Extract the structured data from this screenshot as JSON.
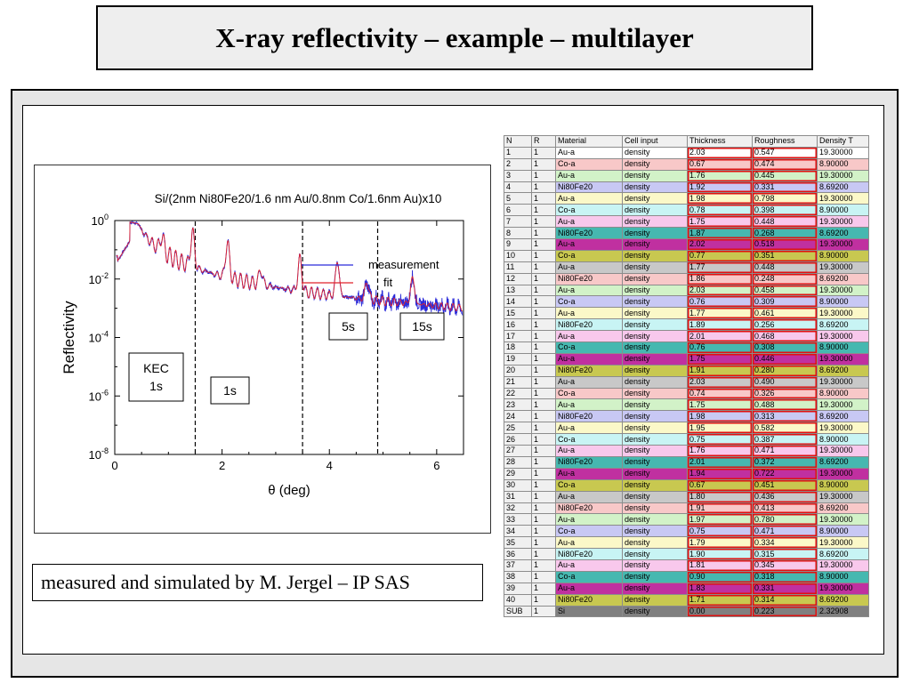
{
  "slide": {
    "title": "X-ray reflectivity – example – multilayer",
    "credit": "measured and simulated by M. Jergel – IP SAS"
  },
  "colors": {
    "measurement": "#2b2bd9",
    "fit": "#e0202a",
    "marker_lines": "#000000",
    "highlight": "#e01010"
  },
  "chart_data": {
    "type": "line",
    "title": "Si/(2nm Ni80Fe20/1.6 nm Au/0.8nm Co/1.6nm Au)x10",
    "xlabel": "θ (deg)",
    "ylabel": "Reflectivity",
    "xlim": [
      0,
      6.5
    ],
    "ylim_log10": [
      -8,
      0
    ],
    "yscale": "log",
    "x_ticks": [
      0,
      2,
      4,
      6
    ],
    "y_ticks": [
      {
        "base": "10",
        "exp": "0"
      },
      {
        "base": "10",
        "exp": "-2"
      },
      {
        "base": "10",
        "exp": "-4"
      },
      {
        "base": "10",
        "exp": "-6"
      },
      {
        "base": "10",
        "exp": "-8"
      }
    ],
    "series": [
      {
        "name": "measurement"
      },
      {
        "name": "fit"
      }
    ],
    "legend_position": "top-right",
    "vlines_x": [
      1.5,
      3.5,
      4.9
    ],
    "annotations": [
      {
        "text": "KEC\n1s",
        "x": 0.55,
        "log10_y": -5.0
      },
      {
        "text": "1s",
        "x": 2.15,
        "log10_y": -5.8
      },
      {
        "text": "5s",
        "x": 4.3,
        "log10_y": -3.6
      },
      {
        "text": "15s",
        "x": 5.7,
        "log10_y": -3.6
      }
    ]
  },
  "table": {
    "headers": [
      "N",
      "R",
      "Material",
      "Cell input",
      "Thickness",
      "Roughness",
      "Density T"
    ],
    "rows": [
      [
        "1",
        "1",
        "Au-a",
        "density",
        "2.03",
        "0.547",
        "19.30000"
      ],
      [
        "2",
        "1",
        "Co-a",
        "density",
        "0.67",
        "0.474",
        "8.90000"
      ],
      [
        "3",
        "1",
        "Au-a",
        "density",
        "1.76",
        "0.445",
        "19.30000"
      ],
      [
        "4",
        "1",
        "Ni80Fe20",
        "density",
        "1.92",
        "0.331",
        "8.69200"
      ],
      [
        "5",
        "1",
        "Au-a",
        "density",
        "1.98",
        "0.798",
        "19.30000"
      ],
      [
        "6",
        "1",
        "Co-a",
        "density",
        "0.78",
        "0.398",
        "8.90000"
      ],
      [
        "7",
        "1",
        "Au-a",
        "density",
        "1.75",
        "0.448",
        "19.30000"
      ],
      [
        "8",
        "1",
        "Ni80Fe20",
        "density",
        "1.87",
        "0.268",
        "8.69200"
      ],
      [
        "9",
        "1",
        "Au-a",
        "density",
        "2.02",
        "0.518",
        "19.30000"
      ],
      [
        "10",
        "1",
        "Co-a",
        "density",
        "0.77",
        "0.351",
        "8.90000"
      ],
      [
        "11",
        "1",
        "Au-a",
        "density",
        "1.77",
        "0.448",
        "19.30000"
      ],
      [
        "12",
        "1",
        "Ni80Fe20",
        "density",
        "1.86",
        "0.248",
        "8.69200"
      ],
      [
        "13",
        "1",
        "Au-a",
        "density",
        "2.03",
        "0.458",
        "19.30000"
      ],
      [
        "14",
        "1",
        "Co-a",
        "density",
        "0.76",
        "0.309",
        "8.90000"
      ],
      [
        "15",
        "1",
        "Au-a",
        "density",
        "1.77",
        "0.461",
        "19.30000"
      ],
      [
        "16",
        "1",
        "Ni80Fe20",
        "density",
        "1.89",
        "0.256",
        "8.69200"
      ],
      [
        "17",
        "1",
        "Au-a",
        "density",
        "2.01",
        "0.468",
        "19.30000"
      ],
      [
        "18",
        "1",
        "Co-a",
        "density",
        "0.76",
        "0.308",
        "8.90000"
      ],
      [
        "19",
        "1",
        "Au-a",
        "density",
        "1.75",
        "0.446",
        "19.30000"
      ],
      [
        "20",
        "1",
        "Ni80Fe20",
        "density",
        "1.91",
        "0.280",
        "8.69200"
      ],
      [
        "21",
        "1",
        "Au-a",
        "density",
        "2.03",
        "0.490",
        "19.30000"
      ],
      [
        "22",
        "1",
        "Co-a",
        "density",
        "0.74",
        "0.326",
        "8.90000"
      ],
      [
        "23",
        "1",
        "Au-a",
        "density",
        "1.75",
        "0.488",
        "19.30000"
      ],
      [
        "24",
        "1",
        "Ni80Fe20",
        "density",
        "1.98",
        "0.313",
        "8.69200"
      ],
      [
        "25",
        "1",
        "Au-a",
        "density",
        "1.95",
        "0.582",
        "19.30000"
      ],
      [
        "26",
        "1",
        "Co-a",
        "density",
        "0.75",
        "0.387",
        "8.90000"
      ],
      [
        "27",
        "1",
        "Au-a",
        "density",
        "1.76",
        "0.471",
        "19.30000"
      ],
      [
        "28",
        "1",
        "Ni80Fe20",
        "density",
        "2.01",
        "0.372",
        "8.69200"
      ],
      [
        "29",
        "1",
        "Au-a",
        "density",
        "1.94",
        "0.722",
        "19.30000"
      ],
      [
        "30",
        "1",
        "Co-a",
        "density",
        "0.67",
        "0.451",
        "8.90000"
      ],
      [
        "31",
        "1",
        "Au-a",
        "density",
        "1.80",
        "0.436",
        "19.30000"
      ],
      [
        "32",
        "1",
        "Ni80Fe20",
        "density",
        "1.91",
        "0.413",
        "8.69200"
      ],
      [
        "33",
        "1",
        "Au-a",
        "density",
        "1.97",
        "0.780",
        "19.30000"
      ],
      [
        "34",
        "1",
        "Co-a",
        "density",
        "0.75",
        "0.471",
        "8.90000"
      ],
      [
        "35",
        "1",
        "Au-a",
        "density",
        "1.79",
        "0.334",
        "19.30000"
      ],
      [
        "36",
        "1",
        "Ni80Fe20",
        "density",
        "1.90",
        "0.315",
        "8.69200"
      ],
      [
        "37",
        "1",
        "Au-a",
        "density",
        "1.81",
        "0.345",
        "19.30000"
      ],
      [
        "38",
        "1",
        "Co-a",
        "density",
        "0.90",
        "0.318",
        "8.90000"
      ],
      [
        "39",
        "1",
        "Au-a",
        "density",
        "1.83",
        "0.331",
        "19.30000"
      ],
      [
        "40",
        "1",
        "Ni80Fe20",
        "density",
        "1.71",
        "0.314",
        "8.69200"
      ],
      [
        "SUB",
        "1",
        "Si",
        "density",
        "0.00",
        "0.223",
        "2.32908"
      ]
    ],
    "row_colors": [
      "#ffffff",
      "#f8c8c8",
      "#d2f2c8",
      "#c8c8f4",
      "#fbf8c8",
      "#c8f4f4",
      "#f8c8ec",
      "#46b8b0",
      "#c030a0",
      "#c8c850",
      "#c8c8c8",
      "#f8c8c8",
      "#d2f2c8",
      "#c8c8f4",
      "#fbf8c8",
      "#c8f4f4",
      "#f8c8ec",
      "#46b8b0",
      "#c030a0",
      "#c8c850",
      "#c8c8c8",
      "#f8c8c8",
      "#d2f2c8",
      "#c8c8f4",
      "#fbf8c8",
      "#c8f4f4",
      "#f8c8ec",
      "#46b8b0",
      "#c030a0",
      "#c8c850",
      "#c8c8c8",
      "#f8c8c8",
      "#d2f2c8",
      "#c8c8f4",
      "#fbf8c8",
      "#c8f4f4",
      "#f8c8ec",
      "#46b8b0",
      "#c030a0",
      "#c8c850",
      "#808080"
    ],
    "subhead_color": "#f0f0f0"
  }
}
